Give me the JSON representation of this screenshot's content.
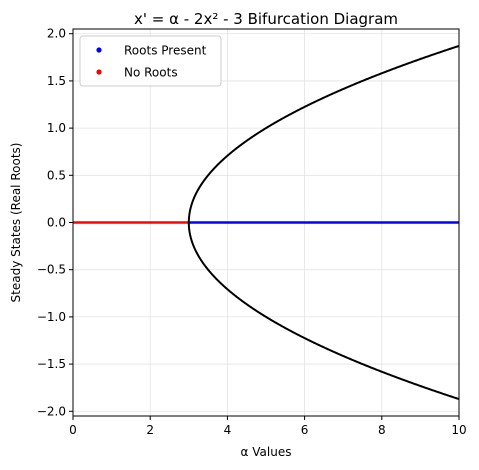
{
  "chart_data": {
    "type": "scatter",
    "title": "x' = α - 2x² - 3 Bifurcation Diagram",
    "xlabel": "α Values",
    "ylabel": "Steady States (Real Roots)",
    "xlim": [
      0,
      10
    ],
    "ylim": [
      -2.05,
      2.05
    ],
    "xticks": [
      0,
      2,
      4,
      6,
      8,
      10
    ],
    "yticks": [
      -2.0,
      -1.5,
      -1.0,
      -0.5,
      0.0,
      0.5,
      1.0,
      1.5,
      2.0
    ],
    "xtick_labels": [
      "0",
      "2",
      "4",
      "6",
      "8",
      "10"
    ],
    "ytick_labels": [
      "−2.0",
      "−1.5",
      "−1.0",
      "−0.5",
      "0.0",
      "0.5",
      "1.0",
      "1.5",
      "2.0"
    ],
    "grid": true,
    "legend_position": "upper-left",
    "series": [
      {
        "name": "Roots Present",
        "color": "#0000ff",
        "kind": "points-on-zero-line",
        "x_range": [
          3,
          10
        ],
        "y": 0
      },
      {
        "name": "No Roots",
        "color": "#ff0000",
        "kind": "points-on-zero-line",
        "x_range": [
          0,
          3
        ],
        "y": 0
      }
    ],
    "curve": {
      "color": "#000000",
      "equation": "x = ±sqrt((α - 3) / 2)",
      "alpha_range": [
        3,
        10
      ]
    }
  }
}
